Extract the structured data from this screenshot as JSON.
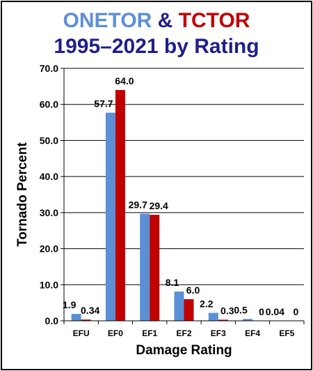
{
  "title": {
    "series1_name": "ONETOR",
    "connector": "&",
    "series2_name": "TCTOR",
    "line2": "1995–2021 by Rating"
  },
  "colors": {
    "series1": "#5b8fd6",
    "series2": "#c00000",
    "title_line2": "#1f1f8a",
    "connector": "#1f1f8a"
  },
  "chart_data": {
    "type": "bar",
    "categories": [
      "EFU",
      "EF0",
      "EF1",
      "EF2",
      "EF3",
      "EF4",
      "EF5"
    ],
    "series": [
      {
        "name": "ONETOR",
        "values": [
          1.9,
          57.7,
          29.7,
          8.1,
          2.2,
          0.5,
          0.04
        ],
        "labels": [
          "1.9",
          "57.7",
          "29.7",
          "8.1",
          "2.2",
          "0.5",
          "0.04"
        ]
      },
      {
        "name": "TCTOR",
        "values": [
          0.34,
          64.0,
          29.4,
          6.0,
          0.3,
          0,
          0
        ],
        "labels": [
          "0.34",
          "64.0",
          "29.4",
          "6.0",
          "0.3",
          "0",
          "0"
        ]
      }
    ],
    "yticks": [
      "0.0",
      "10.0",
      "20.0",
      "30.0",
      "40.0",
      "50.0",
      "60.0",
      "70.0"
    ],
    "ylim": [
      0,
      70
    ],
    "xlabel": "Damage Rating",
    "ylabel": "Tornado Percent",
    "grid": true
  }
}
